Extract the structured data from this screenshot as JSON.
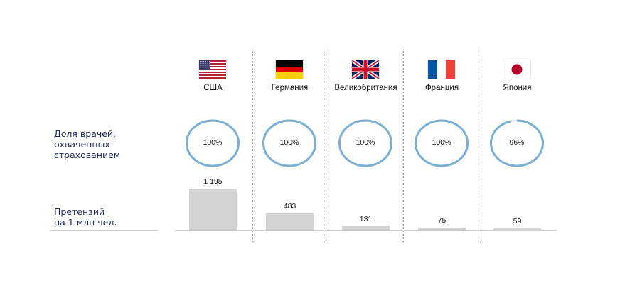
{
  "row_labels": {
    "doctors_share": "Доля врачей,\nохваченных\nстрахованием",
    "claims": "Претензий\nна 1 млн чел."
  },
  "countries": [
    {
      "name": "США",
      "flag_icon": "usa-flag-icon",
      "coverage_label": "100%",
      "coverage": 100,
      "claims_label": "1 195",
      "claims": 1195
    },
    {
      "name": "Германия",
      "flag_icon": "germany-flag-icon",
      "coverage_label": "100%",
      "coverage": 100,
      "claims_label": "483",
      "claims": 483
    },
    {
      "name": "Великобритания",
      "flag_icon": "uk-flag-icon",
      "coverage_label": "100%",
      "coverage": 100,
      "claims_label": "131",
      "claims": 131
    },
    {
      "name": "Франция",
      "flag_icon": "france-flag-icon",
      "coverage_label": "100%",
      "coverage": 100,
      "claims_label": "75",
      "claims": 75
    },
    {
      "name": "Япония",
      "flag_icon": "japan-flag-icon",
      "coverage_label": "96%",
      "coverage": 96,
      "claims_label": "59",
      "claims": 59
    }
  ],
  "colors": {
    "ring": "#7bafd4",
    "ring_remainder": "#e3e9ef",
    "bar": "#d3d3d3",
    "label_text": "#1d2c5a"
  },
  "chart_data": [
    {
      "type": "pie",
      "title": "",
      "ylabel": "Доля врачей, охваченных страхованием",
      "categories": [
        "США",
        "Германия",
        "Великобритания",
        "Франция",
        "Япония"
      ],
      "values": [
        100,
        100,
        100,
        100,
        96
      ],
      "unit": "%"
    },
    {
      "type": "bar",
      "title": "",
      "ylabel": "Претензий на 1 млн чел.",
      "categories": [
        "США",
        "Германия",
        "Великобритания",
        "Франция",
        "Япония"
      ],
      "values": [
        1195,
        483,
        131,
        75,
        59
      ],
      "ylim": [
        0,
        1195
      ],
      "grid": false
    }
  ]
}
